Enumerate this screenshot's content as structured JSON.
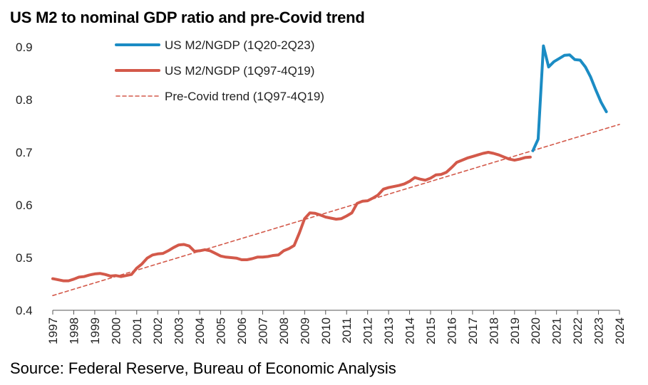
{
  "title": "US M2 to nominal GDP ratio and pre-Covid trend",
  "source": "Source: Federal Reserve, Bureau of Economic Analysis",
  "colors": {
    "covid_series": "#1B8CC4",
    "pre_series": "#D3594A",
    "trend": "#D3594A",
    "axis": "#555555"
  },
  "chart_data": {
    "type": "line",
    "title": "US M2 to nominal GDP ratio and pre-Covid trend",
    "xlabel": "",
    "ylabel": "",
    "xlim": [
      1997,
      2024
    ],
    "ylim": [
      0.4,
      0.9
    ],
    "y_ticks": [
      "0.9",
      "0.8",
      "0.7",
      "0.6",
      "0.5",
      "0.4"
    ],
    "x_ticks": [
      "1997",
      "1998",
      "1999",
      "2000",
      "2001",
      "2002",
      "2003",
      "2004",
      "2005",
      "2006",
      "2007",
      "2008",
      "2009",
      "2010",
      "2011",
      "2012",
      "2013",
      "2014",
      "2015",
      "2016",
      "2017",
      "2018",
      "2019",
      "2020",
      "2021",
      "2022",
      "2023",
      "2024"
    ],
    "grid": false,
    "legend_position": "top-center",
    "series": [
      {
        "name": "US M2/NGDP (1Q20-2Q23)",
        "x": [
          2019.875,
          2020.125,
          2020.375,
          2020.625,
          2020.875,
          2021.125,
          2021.375,
          2021.625,
          2021.875,
          2022.125,
          2022.375,
          2022.625,
          2022.875,
          2023.125,
          2023.375
        ],
        "y": [
          0.703,
          0.725,
          0.902,
          0.862,
          0.872,
          0.878,
          0.884,
          0.885,
          0.876,
          0.875,
          0.862,
          0.843,
          0.818,
          0.795,
          0.777
        ]
      },
      {
        "name": "US M2/NGDP (1Q97-4Q19)",
        "x": [
          1997.0,
          1997.25,
          1997.5,
          1997.75,
          1998.0,
          1998.25,
          1998.5,
          1998.75,
          1999.0,
          1999.25,
          1999.5,
          1999.75,
          2000.0,
          2000.25,
          2000.5,
          2000.75,
          2001.0,
          2001.25,
          2001.5,
          2001.75,
          2002.0,
          2002.25,
          2002.5,
          2002.75,
          2003.0,
          2003.25,
          2003.5,
          2003.75,
          2004.0,
          2004.25,
          2004.5,
          2004.75,
          2005.0,
          2005.25,
          2005.5,
          2005.75,
          2006.0,
          2006.25,
          2006.5,
          2006.75,
          2007.0,
          2007.25,
          2007.5,
          2007.75,
          2008.0,
          2008.25,
          2008.5,
          2008.75,
          2009.0,
          2009.25,
          2009.5,
          2009.75,
          2010.0,
          2010.25,
          2010.5,
          2010.75,
          2011.0,
          2011.25,
          2011.5,
          2011.75,
          2012.0,
          2012.25,
          2012.5,
          2012.75,
          2013.0,
          2013.25,
          2013.5,
          2013.75,
          2014.0,
          2014.25,
          2014.5,
          2014.75,
          2015.0,
          2015.25,
          2015.5,
          2015.75,
          2016.0,
          2016.25,
          2016.5,
          2016.75,
          2017.0,
          2017.25,
          2017.5,
          2017.75,
          2018.0,
          2018.25,
          2018.5,
          2018.75,
          2019.0,
          2019.25,
          2019.5,
          2019.75
        ],
        "y": [
          0.46,
          0.458,
          0.456,
          0.456,
          0.459,
          0.463,
          0.464,
          0.467,
          0.469,
          0.47,
          0.468,
          0.465,
          0.466,
          0.464,
          0.466,
          0.468,
          0.48,
          0.488,
          0.499,
          0.505,
          0.507,
          0.508,
          0.513,
          0.519,
          0.524,
          0.525,
          0.522,
          0.512,
          0.513,
          0.515,
          0.513,
          0.508,
          0.503,
          0.501,
          0.5,
          0.499,
          0.496,
          0.496,
          0.498,
          0.501,
          0.501,
          0.502,
          0.504,
          0.505,
          0.513,
          0.517,
          0.523,
          0.547,
          0.574,
          0.585,
          0.584,
          0.581,
          0.577,
          0.575,
          0.573,
          0.574,
          0.579,
          0.585,
          0.603,
          0.607,
          0.608,
          0.613,
          0.619,
          0.63,
          0.633,
          0.635,
          0.637,
          0.64,
          0.645,
          0.652,
          0.649,
          0.647,
          0.651,
          0.657,
          0.658,
          0.662,
          0.671,
          0.681,
          0.685,
          0.689,
          0.692,
          0.695,
          0.698,
          0.7,
          0.698,
          0.695,
          0.691,
          0.687,
          0.685,
          0.687,
          0.69,
          0.691
        ]
      },
      {
        "name": "Pre-Covid trend (1Q97-4Q19)",
        "x": [
          1997.0,
          2024.0
        ],
        "y": [
          0.428,
          0.753
        ]
      }
    ]
  }
}
